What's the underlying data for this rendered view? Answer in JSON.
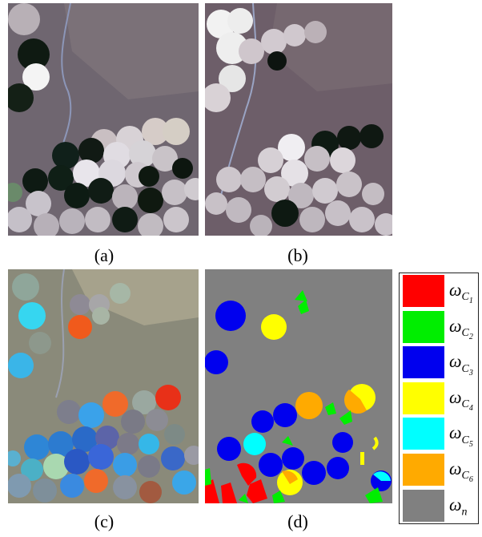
{
  "captions": {
    "a": "(a)",
    "b": "(b)",
    "c": "(c)",
    "d": "(d)"
  },
  "legend": [
    {
      "symbol": "ω",
      "sub": "C",
      "idx": "1",
      "color": "#ff0000"
    },
    {
      "symbol": "ω",
      "sub": "C",
      "idx": "2",
      "color": "#00ee00"
    },
    {
      "symbol": "ω",
      "sub": "C",
      "idx": "3",
      "color": "#0000ee"
    },
    {
      "symbol": "ω",
      "sub": "C",
      "idx": "4",
      "color": "#ffff00"
    },
    {
      "symbol": "ω",
      "sub": "C",
      "idx": "5",
      "color": "#00ffff"
    },
    {
      "symbol": "ω",
      "sub": "C",
      "idx": "6",
      "color": "#ffaa00"
    },
    {
      "symbol": "ω",
      "sub": "n",
      "idx": "",
      "color": "#808080"
    }
  ]
}
